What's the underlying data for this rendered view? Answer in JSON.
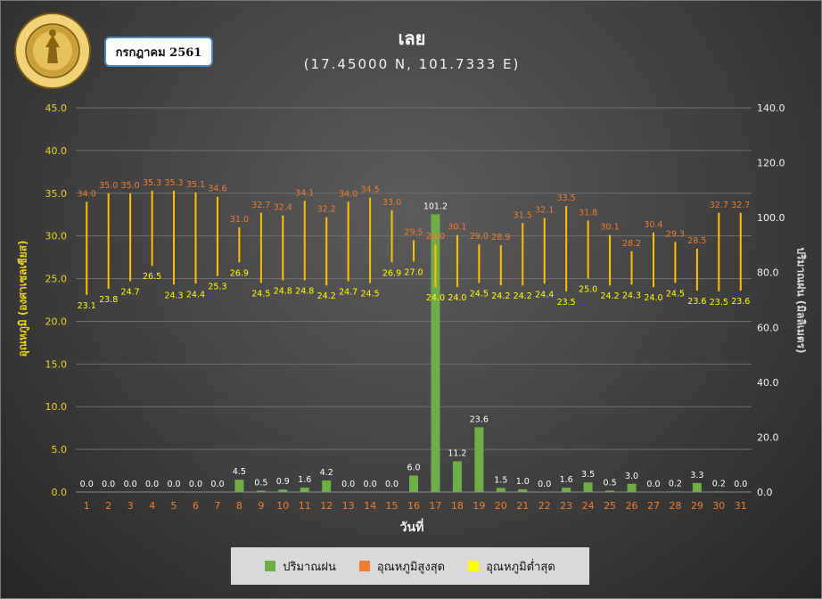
{
  "title": "เลย",
  "subtitle": "(17.45000 N, 101.7333 E)",
  "month_label": "กรกฎาคม 2561",
  "logo_text": "กรมอุตุนิยมวิทยา METEOROLOGICAL DEPARTMENT",
  "colors": {
    "rain": "#70ad47",
    "max_label": "#ed7d31",
    "min_label": "#ffff00",
    "range_line": "#ffc000",
    "left_axis": "#e7d21f",
    "x_ticks": "#ed7d31"
  },
  "chart_data": {
    "type": "bar",
    "xlabel": "วันที่",
    "ylabel": "อุณหภูมิ (องศาเซลเซียส)",
    "y2label": "ปริมาณฝน (มิลลิเมตร)",
    "ylim": [
      0,
      45
    ],
    "y2lim": [
      0,
      140
    ],
    "yticks": [
      "0.0",
      "5.0",
      "10.0",
      "15.0",
      "20.0",
      "25.0",
      "30.0",
      "35.0",
      "40.0",
      "45.0"
    ],
    "y2ticks": [
      "0.0",
      "20.0",
      "40.0",
      "60.0",
      "80.0",
      "100.0",
      "120.0",
      "140.0"
    ],
    "categories": [
      "1",
      "2",
      "3",
      "4",
      "5",
      "6",
      "7",
      "8",
      "9",
      "10",
      "11",
      "12",
      "13",
      "14",
      "15",
      "16",
      "17",
      "18",
      "19",
      "20",
      "21",
      "22",
      "23",
      "24",
      "25",
      "26",
      "27",
      "28",
      "29",
      "30",
      "31"
    ],
    "grid": true,
    "legend_position": "bottom",
    "series": [
      {
        "name": "ปริมาณฝน",
        "type": "bar",
        "axis": "right",
        "values": [
          0.0,
          0.0,
          0.0,
          0.0,
          0.0,
          0.0,
          0.0,
          4.5,
          0.5,
          0.9,
          1.6,
          4.2,
          0.0,
          0.0,
          0.0,
          6.0,
          101.2,
          11.2,
          23.6,
          1.5,
          1.0,
          0.0,
          1.6,
          3.5,
          0.5,
          3.0,
          0.0,
          0.2,
          3.3,
          0.2,
          0.0
        ],
        "labels": [
          "0.0",
          "0.0",
          "0.0",
          "0.0",
          "0.0",
          "0.0",
          "0.0",
          "4.5",
          "0.5",
          "0.9",
          "1.6",
          "4.2",
          "0.0",
          "0.0",
          "0.0",
          "6.0",
          "101.2",
          "11.2",
          "23.6",
          "1.5",
          "1.0",
          "0.0",
          "1.6",
          "3.5",
          "0.5",
          "3.0",
          "0.0",
          "0.2",
          "3.3",
          "0.2",
          "0.0"
        ]
      },
      {
        "name": "อุณหภูมิสูงสุด",
        "type": "range-high",
        "axis": "left",
        "values": [
          34.0,
          35.0,
          35.0,
          35.3,
          35.3,
          35.1,
          34.6,
          31.0,
          32.7,
          32.4,
          34.1,
          32.2,
          34.0,
          34.5,
          33.0,
          29.5,
          29.0,
          30.1,
          29.0,
          28.9,
          31.5,
          32.1,
          33.5,
          31.8,
          30.1,
          28.2,
          30.4,
          29.3,
          28.5,
          32.7,
          32.7
        ],
        "labels": [
          "34.0",
          "35.0",
          "35.0",
          "35.3",
          "35.3",
          "35.1",
          "34.6",
          "31.0",
          "32.7",
          "32.4",
          "34.1",
          "32.2",
          "34.0",
          "34.5",
          "33.0",
          "29.5",
          "29.0",
          "30.1",
          "29.0",
          "28.9",
          "31.5",
          "32.1",
          "33.5",
          "31.8",
          "30.1",
          "28.2",
          "30.4",
          "29.3",
          "28.5",
          "32.7",
          "32.7"
        ]
      },
      {
        "name": "อุณหภูมิต่ำสุด",
        "type": "range-low",
        "axis": "left",
        "values": [
          23.1,
          23.8,
          24.7,
          26.5,
          24.3,
          24.4,
          25.3,
          26.9,
          24.5,
          24.8,
          24.8,
          24.2,
          24.7,
          24.5,
          26.9,
          27.0,
          24.0,
          24.0,
          24.5,
          24.2,
          24.2,
          24.4,
          23.5,
          25.0,
          24.2,
          24.3,
          24.0,
          24.5,
          23.6,
          23.5,
          23.6
        ],
        "labels": [
          "23.1",
          "23.8",
          "24.7",
          "26.5",
          "24.3",
          "24.4",
          "25.3",
          "26.9",
          "24.5",
          "24.8",
          "24.8",
          "24.2",
          "24.7",
          "24.5",
          "26.9",
          "27.0",
          "24.0",
          "24.0",
          "24.5",
          "24.2",
          "24.2",
          "24.4",
          "23.5",
          "25.0",
          "24.2",
          "24.3",
          "24.0",
          "24.5",
          "23.6",
          "23.5",
          "23.6"
        ]
      }
    ]
  }
}
